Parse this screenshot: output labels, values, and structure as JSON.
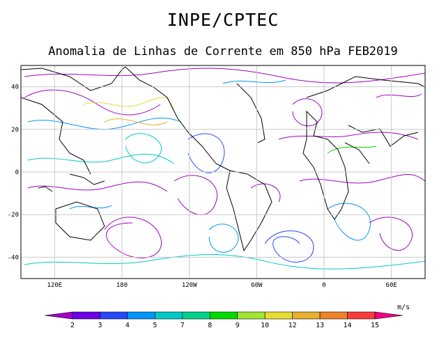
{
  "header": {
    "title": "INPE/CPTEC",
    "subtitle": "Anomalia de Linhas de Corrente em 850 hPa FEB2019"
  },
  "map": {
    "lat_labels": [
      "40",
      "20",
      "0",
      "-20",
      "-40"
    ],
    "lon_labels": [
      "120E",
      "180",
      "120W",
      "60W",
      "0",
      "60E"
    ],
    "lat_values": [
      40,
      20,
      0,
      -20,
      -40
    ],
    "lon_values": [
      120,
      180,
      240,
      300,
      360,
      420
    ],
    "lon_range": [
      90,
      450
    ],
    "lat_range": [
      -50,
      50
    ]
  },
  "colorbar": {
    "unit": "m/s",
    "labels": [
      "2",
      "3",
      "4",
      "5",
      "7",
      "8",
      "9",
      "10",
      "12",
      "13",
      "14",
      "15"
    ],
    "colors": [
      "#a000c8",
      "#6e00e6",
      "#2846ff",
      "#0096ff",
      "#00c8c8",
      "#00d28c",
      "#00dc00",
      "#a0e632",
      "#e6dc32",
      "#e6af2d",
      "#f08228",
      "#fa3c3c",
      "#f00082"
    ]
  }
}
